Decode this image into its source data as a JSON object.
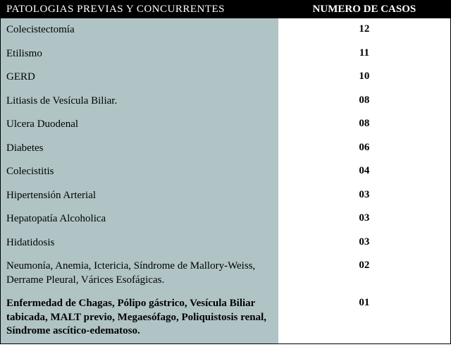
{
  "table": {
    "header": {
      "left": "PATOLOGIAS PREVIAS Y CONCURRENTES",
      "right": "NUMERO DE CASOS"
    },
    "rows": [
      {
        "pathology": "Colecistectomía",
        "cases": "12",
        "bold": false
      },
      {
        "pathology": "Etilismo",
        "cases": "11",
        "bold": false
      },
      {
        "pathology": "GERD",
        "cases": "10",
        "bold": false
      },
      {
        "pathology": "Litiasis de Vesícula Biliar.",
        "cases": "08",
        "bold": false
      },
      {
        "pathology": "Ulcera Duodenal",
        "cases": "08",
        "bold": false
      },
      {
        "pathology": "Diabetes",
        "cases": "06",
        "bold": false
      },
      {
        "pathology": "Colecistitis",
        "cases": "04",
        "bold": false
      },
      {
        "pathology": "Hipertensión Arterial",
        "cases": "03",
        "bold": false
      },
      {
        "pathology": "Hepatopatía Alcoholica",
        "cases": "03",
        "bold": false
      },
      {
        "pathology": "Hidatidosis",
        "cases": "03",
        "bold": false
      },
      {
        "pathology": "Neumonía, Anemia, Ictericia, Síndrome de Mallory-Weiss, Derrame Pleural, Várices Esofágicas.",
        "cases": "02",
        "bold": false
      },
      {
        "pathology": "Enfermedad de Chagas, Pólipo gástrico, Vesícula Biliar tabicada, MALT previo, Megaesófago, Poliquistosis renal, Síndrome ascítico-edematoso.",
        "cases": "01",
        "bold": true
      }
    ],
    "colors": {
      "header_bg": "#000000",
      "header_text": "#ffffff",
      "left_col_bg": "#b0c4c6",
      "right_col_bg": "#ffffff",
      "text": "#000000"
    },
    "fonts": {
      "family": "Georgia, serif",
      "header_size": 15,
      "body_size": 15
    },
    "layout": {
      "total_width": 640,
      "left_col_width": 395,
      "right_col_width": 245
    }
  }
}
